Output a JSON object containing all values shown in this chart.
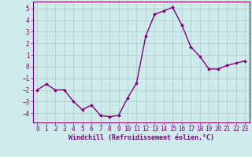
{
  "x": [
    0,
    1,
    2,
    3,
    4,
    5,
    6,
    7,
    8,
    9,
    10,
    11,
    12,
    13,
    14,
    15,
    16,
    17,
    18,
    19,
    20,
    21,
    22,
    23
  ],
  "y": [
    -2.0,
    -1.5,
    -2.0,
    -2.0,
    -3.0,
    -3.7,
    -3.3,
    -4.2,
    -4.3,
    -4.2,
    -2.7,
    -1.4,
    2.6,
    4.5,
    4.8,
    5.1,
    3.6,
    1.7,
    0.9,
    -0.2,
    -0.2,
    0.1,
    0.3,
    0.5
  ],
  "line_color": "#800080",
  "marker": "D",
  "marker_size": 2,
  "linewidth": 1.0,
  "background_color": "#ceeaea",
  "grid_color": "#aacccc",
  "xlabel": "Windchill (Refroidissement éolien,°C)",
  "xlabel_fontsize": 6,
  "tick_fontsize": 5.5,
  "ylim": [
    -4.8,
    5.6
  ],
  "xlim": [
    -0.5,
    23.5
  ],
  "yticks": [
    -4,
    -3,
    -2,
    -1,
    0,
    1,
    2,
    3,
    4,
    5
  ],
  "xticks": [
    0,
    1,
    2,
    3,
    4,
    5,
    6,
    7,
    8,
    9,
    10,
    11,
    12,
    13,
    14,
    15,
    16,
    17,
    18,
    19,
    20,
    21,
    22,
    23
  ]
}
